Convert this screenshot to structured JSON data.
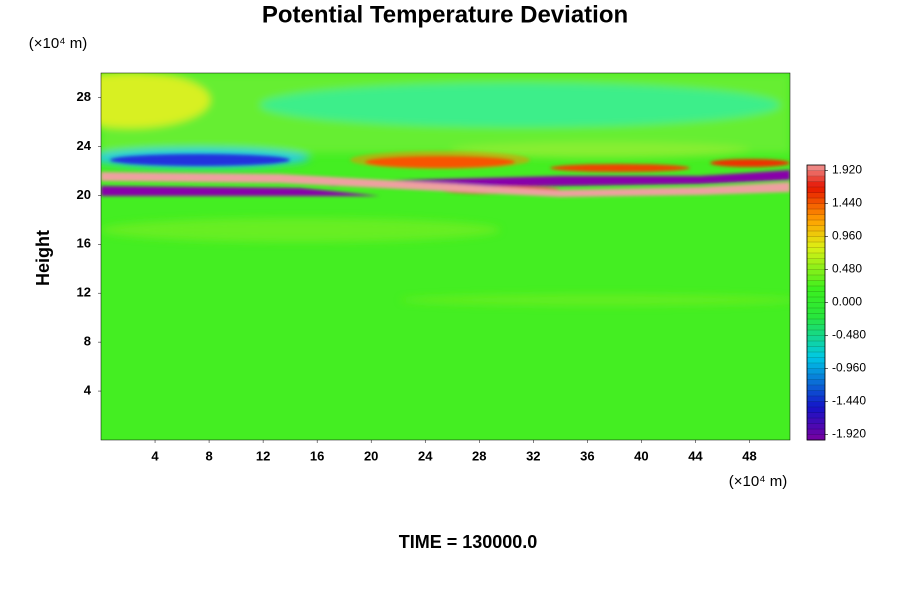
{
  "chart_data": {
    "type": "contour",
    "title": "Potential Temperature Deviation",
    "y_label": "Height",
    "y_unit_label": "(×10⁴ m)",
    "x_unit_label": "(×10⁴ m)",
    "time_label": "TIME = 130000.0",
    "xlim": [
      0,
      51
    ],
    "xticks": [
      4,
      8,
      12,
      16,
      20,
      24,
      28,
      32,
      36,
      40,
      44,
      48
    ],
    "ylim": [
      0,
      30
    ],
    "yticks": [
      4,
      8,
      12,
      16,
      20,
      24,
      28
    ],
    "clim": [
      -2,
      2
    ],
    "cticks": [
      {
        "value": 1.92,
        "label": "1.920"
      },
      {
        "value": 1.44,
        "label": "1.440"
      },
      {
        "value": 0.96,
        "label": "0.960"
      },
      {
        "value": 0.48,
        "label": "0.480"
      },
      {
        "value": 0,
        "label": "0.000"
      },
      {
        "value": -0.48,
        "label": "-0.480"
      },
      {
        "value": -0.96,
        "label": "-0.960"
      },
      {
        "value": -1.44,
        "label": "-1.440"
      },
      {
        "value": -1.92,
        "label": "-1.920"
      }
    ]
  }
}
